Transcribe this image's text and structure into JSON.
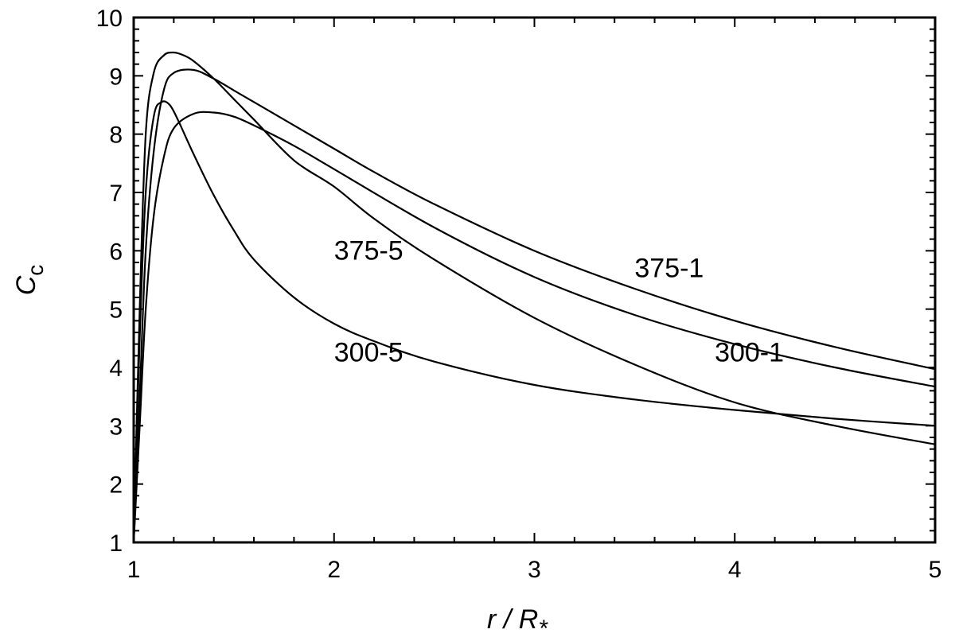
{
  "chart_data": {
    "type": "line",
    "xlabel": "r / R",
    "xlabel_sub": "*",
    "ylabel": "C",
    "ylabel_sub": "c",
    "xlim": [
      1,
      5
    ],
    "ylim": [
      1,
      10
    ],
    "xticks": [
      1,
      2,
      3,
      4,
      5
    ],
    "xticks_minor_step": 0.2,
    "yticks": [
      1,
      2,
      3,
      4,
      5,
      6,
      7,
      8,
      9,
      10
    ],
    "yticks_minor_step": 0.2,
    "grid": false,
    "legend": "none",
    "series": [
      {
        "name": "375-1",
        "x": [
          1.0,
          1.03,
          1.06,
          1.1,
          1.15,
          1.2,
          1.3,
          1.4,
          1.5,
          1.6,
          1.8,
          2.0,
          2.2,
          2.5,
          3.0,
          3.5,
          4.0,
          4.5,
          5.0
        ],
        "y": [
          1.0,
          3.5,
          6.0,
          7.7,
          8.75,
          9.05,
          9.1,
          8.95,
          8.75,
          8.55,
          8.15,
          7.75,
          7.35,
          6.8,
          6.0,
          5.35,
          4.8,
          4.35,
          3.97
        ]
      },
      {
        "name": "375-5",
        "x": [
          1.0,
          1.03,
          1.06,
          1.1,
          1.15,
          1.2,
          1.25,
          1.3,
          1.4,
          1.5,
          1.6,
          1.8,
          2.0,
          2.2,
          2.5,
          3.0,
          3.5,
          4.0,
          4.5,
          5.0
        ],
        "y": [
          1.0,
          5.0,
          8.0,
          9.05,
          9.35,
          9.4,
          9.35,
          9.25,
          8.95,
          8.6,
          8.25,
          7.55,
          7.1,
          6.55,
          5.85,
          4.85,
          4.05,
          3.4,
          3.0,
          2.68
        ]
      },
      {
        "name": "300-1",
        "x": [
          1.0,
          1.03,
          1.06,
          1.1,
          1.15,
          1.2,
          1.3,
          1.4,
          1.5,
          1.6,
          1.8,
          2.0,
          2.5,
          3.0,
          3.5,
          4.0,
          4.5,
          5.0
        ],
        "y": [
          1.0,
          3.0,
          5.0,
          6.6,
          7.6,
          8.1,
          8.35,
          8.37,
          8.3,
          8.15,
          7.8,
          7.4,
          6.4,
          5.55,
          4.9,
          4.4,
          4.0,
          3.67
        ]
      },
      {
        "name": "300-5",
        "x": [
          1.0,
          1.03,
          1.06,
          1.1,
          1.14,
          1.18,
          1.22,
          1.3,
          1.4,
          1.5,
          1.6,
          1.8,
          2.0,
          2.2,
          2.5,
          3.0,
          3.5,
          4.0,
          4.5,
          5.0
        ],
        "y": [
          1.0,
          4.5,
          7.0,
          8.3,
          8.55,
          8.5,
          8.25,
          7.65,
          6.95,
          6.35,
          5.85,
          5.2,
          4.75,
          4.45,
          4.1,
          3.7,
          3.45,
          3.27,
          3.12,
          3.0
        ]
      }
    ],
    "annotations": [
      {
        "text": "375-5",
        "x": 2.0,
        "y": 5.85
      },
      {
        "text": "375-1",
        "x": 3.5,
        "y": 5.55
      },
      {
        "text": "300-5",
        "x": 2.0,
        "y": 4.1
      },
      {
        "text": "300-1",
        "x": 3.9,
        "y": 4.1
      }
    ]
  }
}
